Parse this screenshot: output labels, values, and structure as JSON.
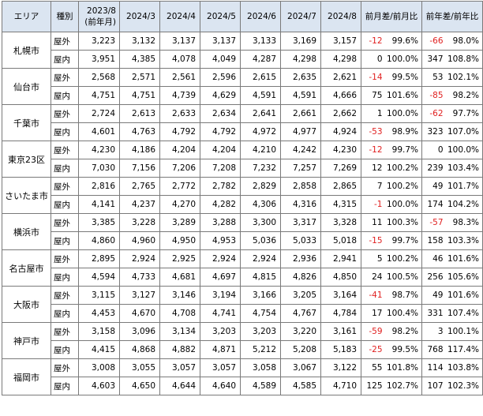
{
  "header": {
    "area": "エリア",
    "kind": "種別",
    "c2023": "2023/8 (前年月)",
    "c2403": "2024/3",
    "c2404": "2024/4",
    "c2405": "2024/5",
    "c2406": "2024/6",
    "c2407": "2024/7",
    "c2408": "2024/8",
    "mom": "前月差/前月比",
    "yoy": "前年差/前年比"
  },
  "colors": {
    "header_bg": "#dbe5f1",
    "negative": "#e02020",
    "border": "#7a7a7a"
  },
  "cities": [
    {
      "name": "札幌市",
      "rows": [
        {
          "kind": "屋外",
          "v": [
            "3,223",
            "3,132",
            "3,137",
            "3,137",
            "3,133",
            "3,169",
            "3,157"
          ],
          "md": "-12",
          "mr": "99.6%",
          "yd": "-66",
          "yr": "98.0%"
        },
        {
          "kind": "屋内",
          "v": [
            "3,951",
            "4,385",
            "4,078",
            "4,049",
            "4,287",
            "4,298",
            "4,298"
          ],
          "md": "0",
          "mr": "100.0%",
          "yd": "347",
          "yr": "108.8%"
        }
      ]
    },
    {
      "name": "仙台市",
      "rows": [
        {
          "kind": "屋外",
          "v": [
            "2,568",
            "2,571",
            "2,561",
            "2,596",
            "2,615",
            "2,635",
            "2,621"
          ],
          "md": "-14",
          "mr": "99.5%",
          "yd": "53",
          "yr": "102.1%"
        },
        {
          "kind": "屋内",
          "v": [
            "4,751",
            "4,751",
            "4,739",
            "4,629",
            "4,591",
            "4,591",
            "4,666"
          ],
          "md": "75",
          "mr": "101.6%",
          "yd": "-85",
          "yr": "98.2%"
        }
      ]
    },
    {
      "name": "千葉市",
      "rows": [
        {
          "kind": "屋外",
          "v": [
            "2,724",
            "2,613",
            "2,633",
            "2,634",
            "2,641",
            "2,661",
            "2,662"
          ],
          "md": "1",
          "mr": "100.0%",
          "yd": "-62",
          "yr": "97.7%"
        },
        {
          "kind": "屋内",
          "v": [
            "4,601",
            "4,763",
            "4,792",
            "4,792",
            "4,972",
            "4,977",
            "4,924"
          ],
          "md": "-53",
          "mr": "98.9%",
          "yd": "323",
          "yr": "107.0%"
        }
      ]
    },
    {
      "name": "東京23区",
      "rows": [
        {
          "kind": "屋外",
          "v": [
            "4,230",
            "4,186",
            "4,204",
            "4,204",
            "4,210",
            "4,242",
            "4,230"
          ],
          "md": "-12",
          "mr": "99.7%",
          "yd": "0",
          "yr": "100.0%"
        },
        {
          "kind": "屋内",
          "v": [
            "7,030",
            "7,156",
            "7,206",
            "7,208",
            "7,232",
            "7,257",
            "7,269"
          ],
          "md": "12",
          "mr": "100.2%",
          "yd": "239",
          "yr": "103.4%"
        }
      ]
    },
    {
      "name": "さいたま市",
      "rows": [
        {
          "kind": "屋外",
          "v": [
            "2,816",
            "2,765",
            "2,772",
            "2,782",
            "2,829",
            "2,858",
            "2,865"
          ],
          "md": "7",
          "mr": "100.2%",
          "yd": "49",
          "yr": "101.7%"
        },
        {
          "kind": "屋内",
          "v": [
            "4,141",
            "4,237",
            "4,270",
            "4,282",
            "4,306",
            "4,316",
            "4,315"
          ],
          "md": "-1",
          "mr": "100.0%",
          "yd": "174",
          "yr": "104.2%"
        }
      ]
    },
    {
      "name": "横浜市",
      "rows": [
        {
          "kind": "屋外",
          "v": [
            "3,385",
            "3,228",
            "3,289",
            "3,288",
            "3,300",
            "3,317",
            "3,328"
          ],
          "md": "11",
          "mr": "100.3%",
          "yd": "-57",
          "yr": "98.3%"
        },
        {
          "kind": "屋内",
          "v": [
            "4,860",
            "4,960",
            "4,950",
            "4,953",
            "5,036",
            "5,033",
            "5,018"
          ],
          "md": "-15",
          "mr": "99.7%",
          "yd": "158",
          "yr": "103.3%"
        }
      ]
    },
    {
      "name": "名古屋市",
      "rows": [
        {
          "kind": "屋外",
          "v": [
            "2,895",
            "2,924",
            "2,925",
            "2,924",
            "2,924",
            "2,936",
            "2,941"
          ],
          "md": "5",
          "mr": "100.2%",
          "yd": "46",
          "yr": "101.6%"
        },
        {
          "kind": "屋内",
          "v": [
            "4,594",
            "4,733",
            "4,681",
            "4,697",
            "4,815",
            "4,826",
            "4,850"
          ],
          "md": "24",
          "mr": "100.5%",
          "yd": "256",
          "yr": "105.6%"
        }
      ]
    },
    {
      "name": "大阪市",
      "rows": [
        {
          "kind": "屋外",
          "v": [
            "3,115",
            "3,127",
            "3,146",
            "3,194",
            "3,166",
            "3,205",
            "3,164"
          ],
          "md": "-41",
          "mr": "98.7%",
          "yd": "49",
          "yr": "101.6%"
        },
        {
          "kind": "屋内",
          "v": [
            "4,453",
            "4,670",
            "4,708",
            "4,741",
            "4,754",
            "4,767",
            "4,784"
          ],
          "md": "17",
          "mr": "100.4%",
          "yd": "331",
          "yr": "107.4%"
        }
      ]
    },
    {
      "name": "神戸市",
      "rows": [
        {
          "kind": "屋外",
          "v": [
            "3,158",
            "3,096",
            "3,134",
            "3,203",
            "3,203",
            "3,220",
            "3,161"
          ],
          "md": "-59",
          "mr": "98.2%",
          "yd": "3",
          "yr": "100.1%"
        },
        {
          "kind": "屋内",
          "v": [
            "4,415",
            "4,868",
            "4,882",
            "4,871",
            "5,212",
            "5,208",
            "5,183"
          ],
          "md": "-25",
          "mr": "99.5%",
          "yd": "768",
          "yr": "117.4%"
        }
      ]
    },
    {
      "name": "福岡市",
      "rows": [
        {
          "kind": "屋外",
          "v": [
            "3,008",
            "3,055",
            "3,057",
            "3,057",
            "3,058",
            "3,067",
            "3,122"
          ],
          "md": "55",
          "mr": "101.8%",
          "yd": "114",
          "yr": "103.8%"
        },
        {
          "kind": "屋内",
          "v": [
            "4,603",
            "4,650",
            "4,644",
            "4,640",
            "4,589",
            "4,585",
            "4,710"
          ],
          "md": "125",
          "mr": "102.7%",
          "yd": "107",
          "yr": "102.3%"
        }
      ]
    }
  ]
}
